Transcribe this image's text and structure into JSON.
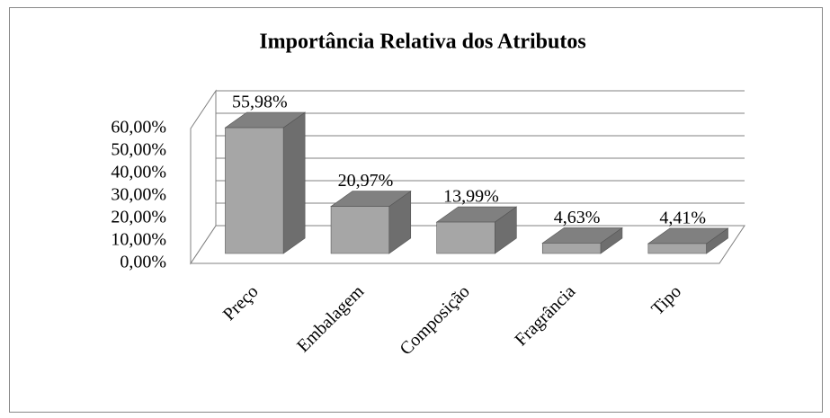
{
  "chart_data": {
    "type": "bar3d",
    "title": "Importância Relativa dos Atributos",
    "categories": [
      "Preço",
      "Embalagem",
      "Composição",
      "Fragrância",
      "Tipo"
    ],
    "values": [
      55.98,
      20.97,
      13.99,
      4.63,
      4.41
    ],
    "value_labels": [
      "55,98%",
      "20,97%",
      "13,99%",
      "4,63%",
      "4,41%"
    ],
    "color": "#a6a6a6",
    "ylim": [
      0,
      60
    ],
    "yticks": [
      {
        "value": 0,
        "label": "0,00%"
      },
      {
        "value": 10,
        "label": "10,00%"
      },
      {
        "value": 20,
        "label": "20,00%"
      },
      {
        "value": 30,
        "label": "30,00%"
      },
      {
        "value": 40,
        "label": "40,00%"
      },
      {
        "value": 50,
        "label": "50,00%"
      },
      {
        "value": 60,
        "label": "60,00%"
      }
    ],
    "grid": true
  }
}
